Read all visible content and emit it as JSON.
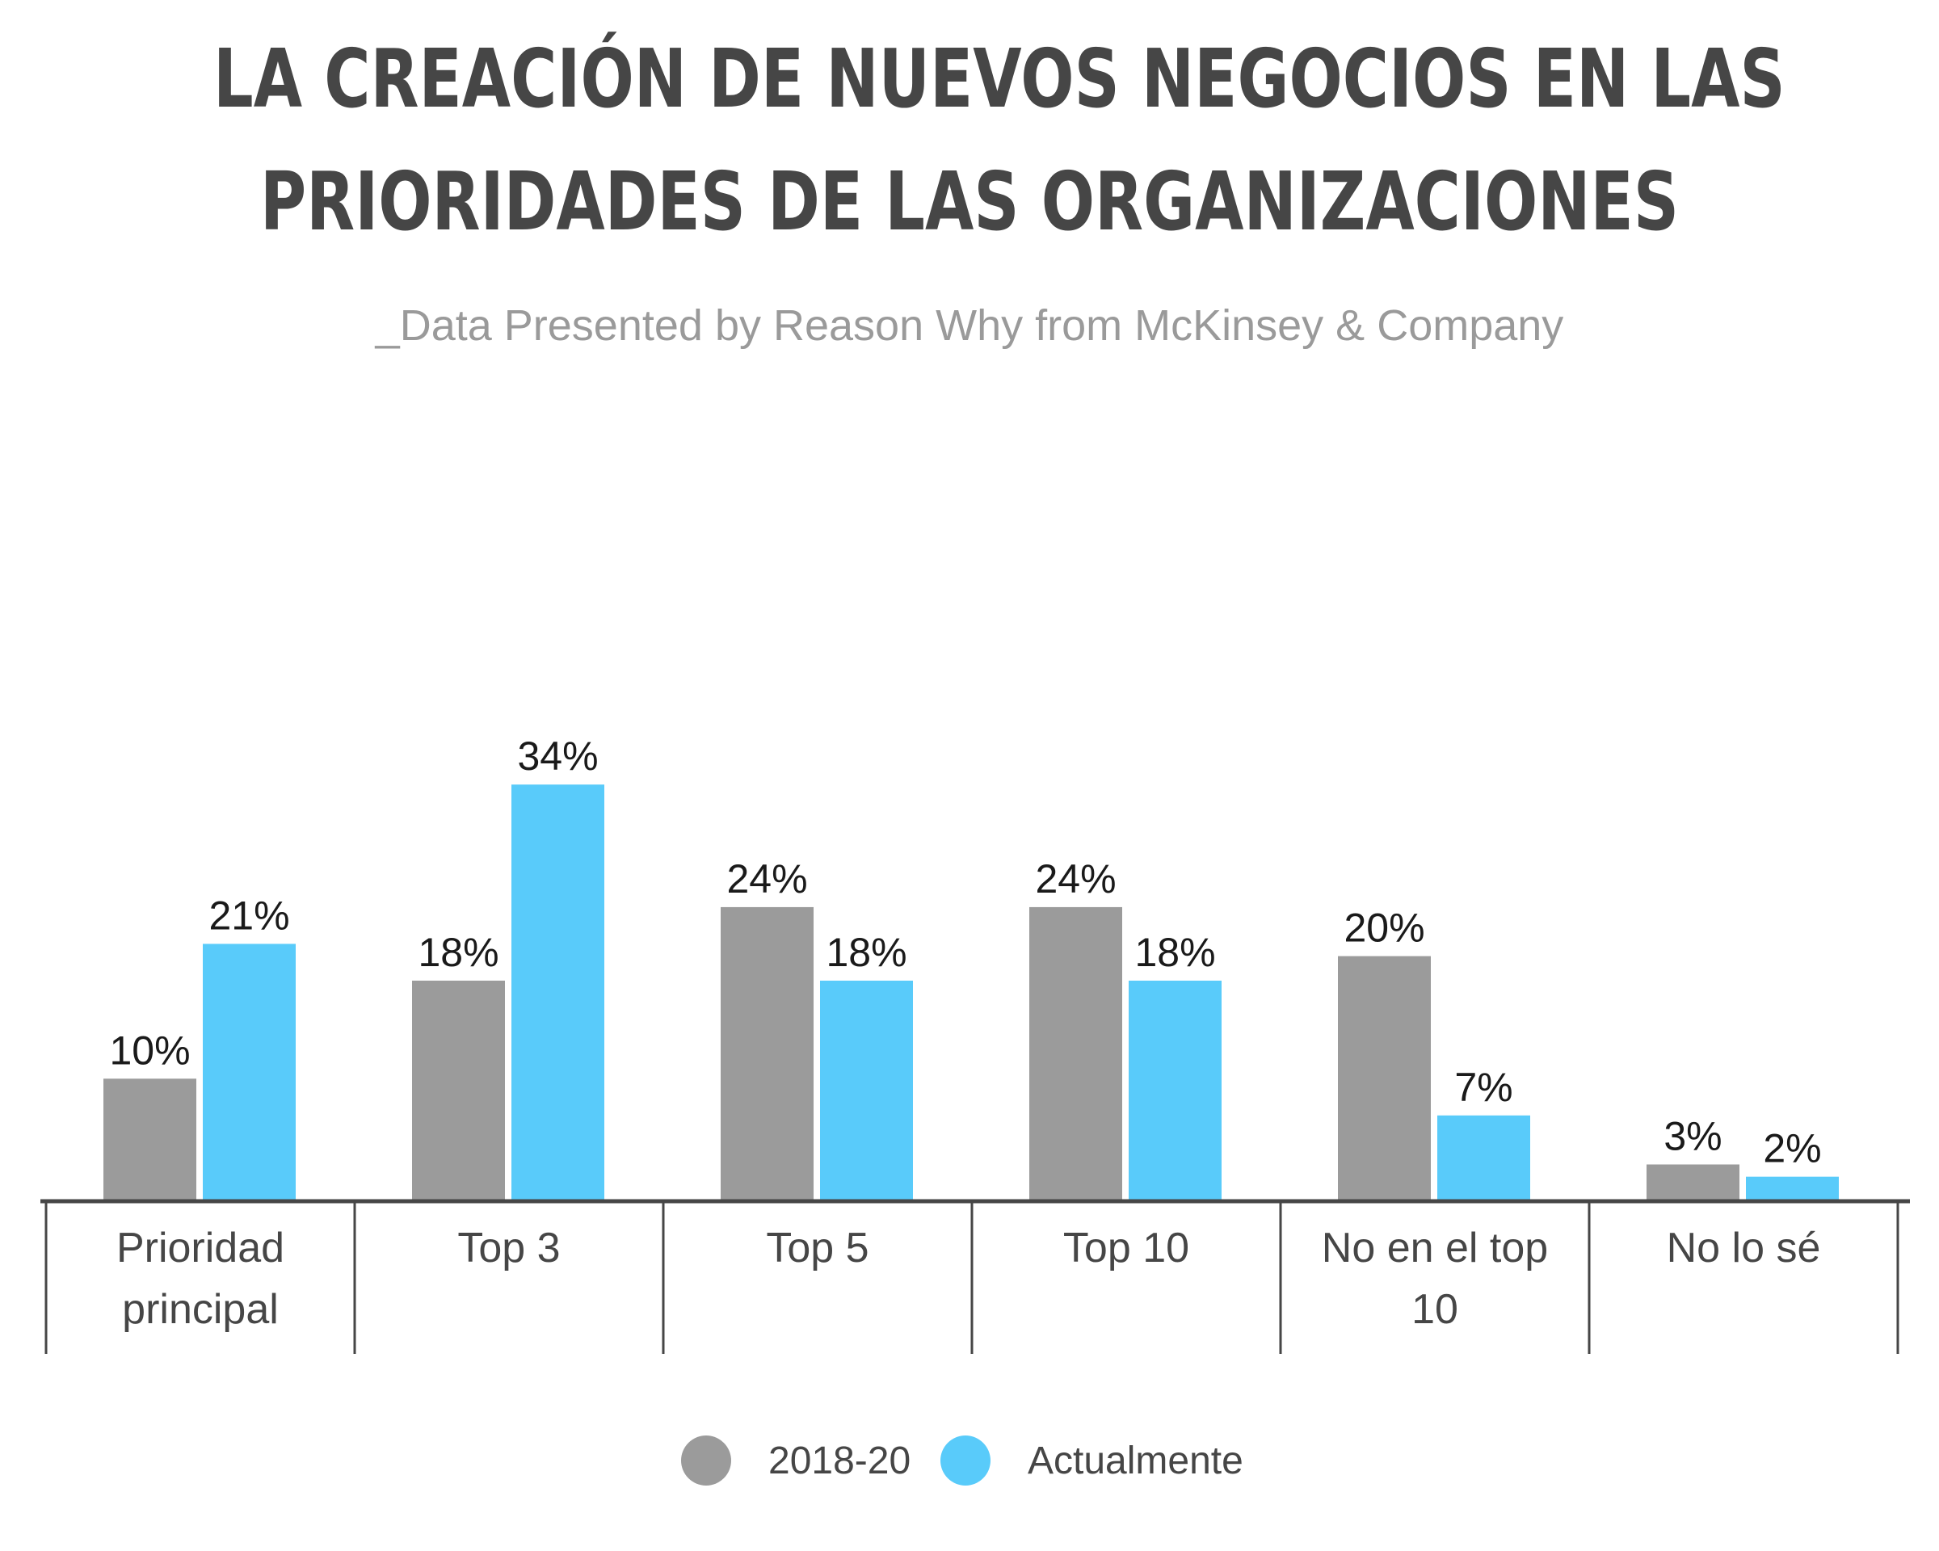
{
  "header": {
    "title_line1": "LA CREACIÓN DE NUEVOS NEGOCIOS EN LAS",
    "title_line2": "PRIORIDADES DE LAS ORGANIZACIONES",
    "subtitle": "_Data Presented by Reason Why from McKinsey & Company"
  },
  "colors": {
    "series_2018_20": "#9b9b9b",
    "series_actualmente": "#59cbfa",
    "axis": "#464646",
    "text": "#1a1a1a",
    "category_text": "#464646"
  },
  "chart_data": {
    "type": "bar",
    "categories": [
      [
        "Prioridad",
        "principal"
      ],
      [
        "Top 3"
      ],
      [
        "Top 5"
      ],
      [
        "Top 10"
      ],
      [
        "No en el top",
        "10"
      ],
      [
        "No lo sé"
      ]
    ],
    "series": [
      {
        "name": "2018-20",
        "values": [
          10,
          18,
          24,
          24,
          20,
          3
        ],
        "labels": [
          "10%",
          "18%",
          "24%",
          "24%",
          "20%",
          "3%"
        ]
      },
      {
        "name": "Actualmente",
        "values": [
          21,
          34,
          18,
          18,
          7,
          2
        ],
        "labels": [
          "21%",
          "34%",
          "18%",
          "18%",
          "7%",
          "2%"
        ]
      }
    ],
    "unit": "%",
    "ylim": [
      0,
      34
    ],
    "grid": false,
    "legend_position": "bottom-center"
  }
}
